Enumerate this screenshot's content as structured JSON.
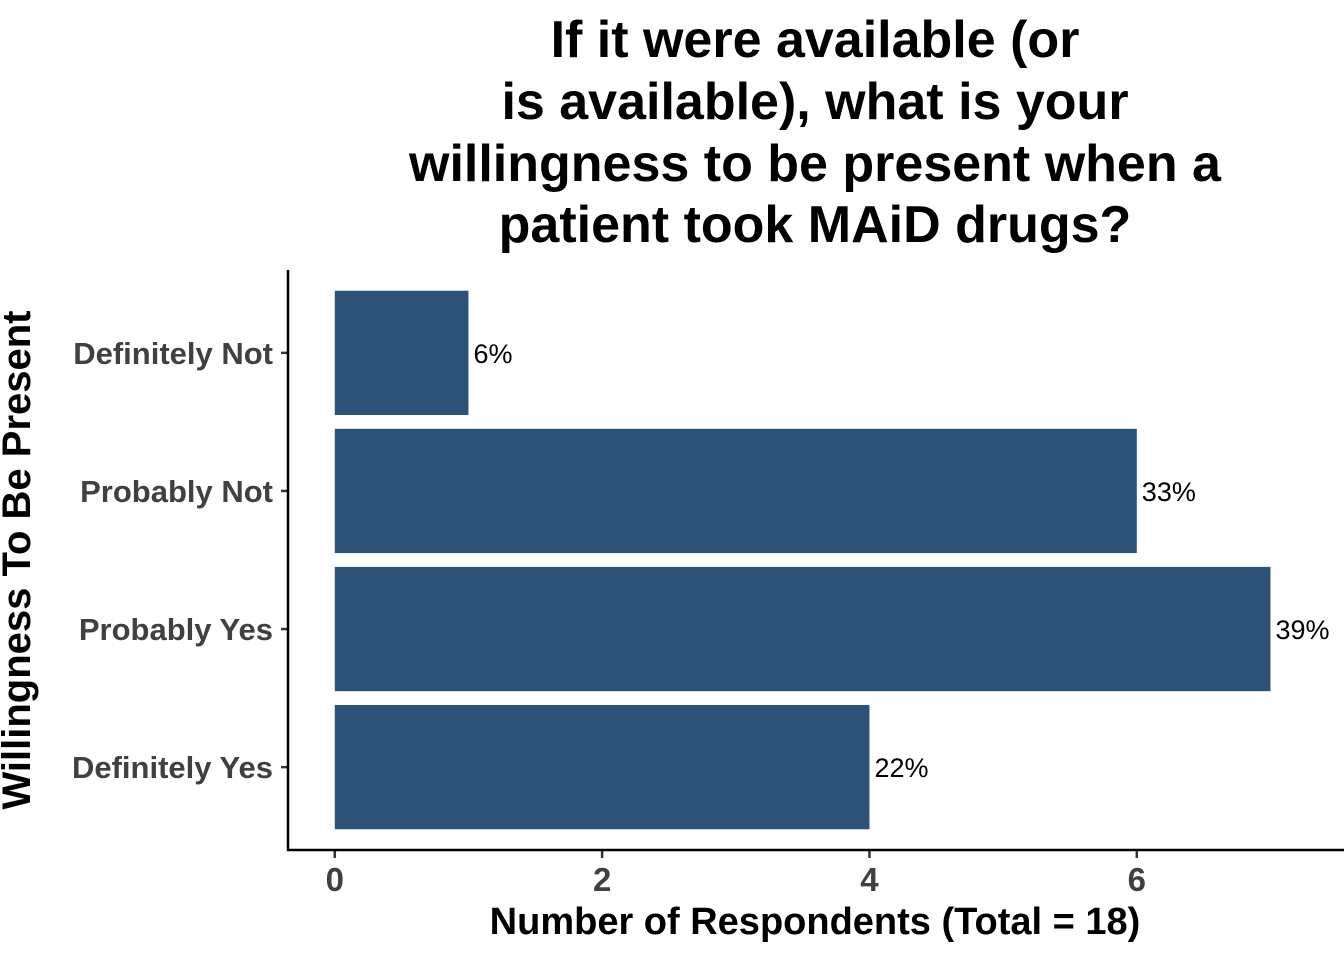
{
  "colors": {
    "bar": "#2c5278",
    "axis": "#000000",
    "tick_label": "#404040"
  },
  "chart_data": {
    "type": "bar",
    "orientation": "horizontal",
    "title_lines": [
      "If it were available (or",
      "is available), what is your",
      "willingness to be present when a",
      "patient took MAiD drugs?"
    ],
    "xlabel": "Number of Respondents (Total = 18)",
    "ylabel": "Willingness To Be Present",
    "categories": [
      "Definitely Not",
      "Probably Not",
      "Probably Yes",
      "Definitely Yes"
    ],
    "values": [
      1,
      6,
      7,
      4
    ],
    "labels": [
      "6%",
      "33%",
      "39%",
      "22%"
    ],
    "xlim": [
      -0.35,
      7.55
    ],
    "xticks": [
      "0",
      "2",
      "4",
      "6"
    ],
    "grid": false,
    "legend": "none"
  }
}
